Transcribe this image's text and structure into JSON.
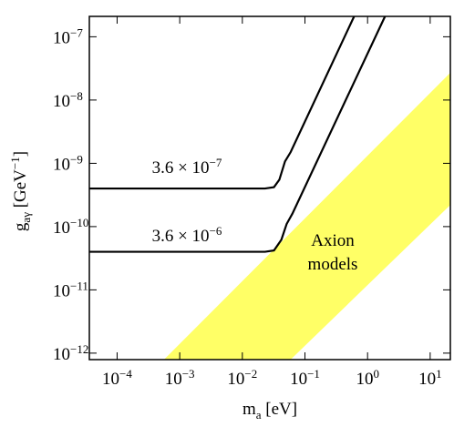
{
  "chart_data": {
    "type": "line",
    "x_label": "ma [eV]",
    "y_label": "gaγ [GeV−1]",
    "xscale": "log",
    "yscale": "log",
    "xlim": [
      3.6e-05,
      21
    ],
    "ylim": [
      7.9e-13,
      2.1e-07
    ],
    "xticks": [
      {
        "value": 0.0001,
        "label": "10−4"
      },
      {
        "value": 0.001,
        "label": "10−3"
      },
      {
        "value": 0.01,
        "label": "10−2"
      },
      {
        "value": 0.1,
        "label": "10−1"
      },
      {
        "value": 1,
        "label": "100"
      },
      {
        "value": 10,
        "label": "101"
      }
    ],
    "yticks": [
      {
        "value": 1e-12,
        "label": "10−12"
      },
      {
        "value": 1e-11,
        "label": "10−11"
      },
      {
        "value": 1e-10,
        "label": "10−10"
      },
      {
        "value": 1e-09,
        "label": "10−9"
      },
      {
        "value": 1e-08,
        "label": "10−8"
      },
      {
        "value": 1e-07,
        "label": "10−7"
      }
    ],
    "band": {
      "name": "Axion models",
      "color": "#ffff66",
      "x": [
        0.00056,
        21,
        21,
        0.059
      ],
      "values": [
        7.9e-13,
        2.7e-08,
        2.2e-10,
        7.9e-13
      ]
    },
    "series": [
      {
        "name": "3.6 × 10−7",
        "color": "#000000",
        "x": [
          3.6e-05,
          0.023,
          0.032,
          0.039,
          0.048,
          0.059,
          0.61
        ],
        "values": [
          4e-10,
          4e-10,
          4.2e-10,
          5.5e-10,
          1.07e-09,
          1.5e-09,
          2.1e-07
        ]
      },
      {
        "name": "3.6 × 10−6",
        "color": "#000000",
        "x": [
          3.6e-05,
          0.023,
          0.032,
          0.042,
          0.051,
          0.063,
          1.9
        ],
        "values": [
          4e-11,
          4e-11,
          4.2e-11,
          6.2e-11,
          1.1e-10,
          1.6e-10,
          2.1e-07
        ]
      }
    ]
  }
}
